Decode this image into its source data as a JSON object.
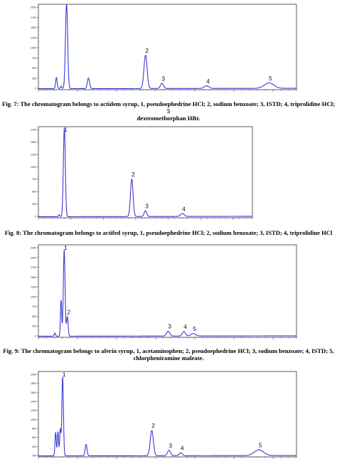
{
  "figures": [
    {
      "caption_lines": [
        "Fig. 7: The chromatogram belongs to actidem syrup, 1, pseudoephedrine HCl; 2, sodium benzoate; 3, ISTD; 4, triprolidine HCl; 5",
        "dextromethorphan HBr."
      ]
    },
    {
      "caption_lines": [
        "Fig. 8: The chromatogram belongs to actifed syrup, 1, pseudoephedrine HCl; 2, sodium benzoate; 3, ISTD; 4, triprolidine HCl"
      ]
    },
    {
      "caption_lines": [
        "Fig. 9: The chromatogram belongs to aferin syrup, 1, acetaminophen; 2, pseudoephedrine HCl; 3, sodium benzoate; 4, ISTD; 5,",
        "chlorpheniramine maleate."
      ]
    },
    {
      "caption_lines": []
    }
  ],
  "colors": {
    "trace": "#3a3ad6",
    "frame": "#333333"
  },
  "chart_data": [
    {
      "type": "line",
      "y_tick_labels": [
        "2000",
        "1750",
        "1500",
        "1250",
        "1000",
        "750",
        "500",
        "250",
        "0"
      ],
      "ylim": [
        0,
        2000
      ],
      "xlim": [
        0,
        33
      ],
      "peak_labels": [
        "2",
        "3",
        "4",
        "5"
      ],
      "peaks": [
        {
          "x": 2.3,
          "h": 260,
          "w": 0.1
        },
        {
          "x": 2.9,
          "h": 60,
          "w": 0.08
        },
        {
          "x": 3.6,
          "h": 2000,
          "w": 0.14,
          "label": ""
        },
        {
          "x": 6.4,
          "h": 250,
          "w": 0.14
        },
        {
          "x": 13.7,
          "h": 780,
          "w": 0.2,
          "label": "2"
        },
        {
          "x": 15.8,
          "h": 120,
          "w": 0.2,
          "label": "3"
        },
        {
          "x": 21.5,
          "h": 60,
          "w": 0.3,
          "label": "4"
        },
        {
          "x": 29.5,
          "h": 130,
          "w": 0.6,
          "label": "5"
        }
      ]
    },
    {
      "type": "line",
      "y_tick_labels": [
        "1750",
        "1500",
        "1250",
        "1000",
        "750",
        "500",
        "250",
        "0"
      ],
      "ylim": [
        0,
        1900
      ],
      "xlim": [
        0,
        33
      ],
      "peak_labels": [
        "1",
        "2",
        "3",
        "4"
      ],
      "peaks": [
        {
          "x": 3.2,
          "h": 40,
          "w": 0.1
        },
        {
          "x": 4.0,
          "h": 1850,
          "w": 0.15,
          "label": "1"
        },
        {
          "x": 14.4,
          "h": 780,
          "w": 0.2,
          "label": "2"
        },
        {
          "x": 16.5,
          "h": 120,
          "w": 0.2,
          "label": "3"
        },
        {
          "x": 22.2,
          "h": 60,
          "w": 0.3,
          "label": "4"
        }
      ]
    },
    {
      "type": "line",
      "y_tick_labels": [
        "2250",
        "2000",
        "1750",
        "1500",
        "1250",
        "1000",
        "750",
        "500",
        "250",
        "0"
      ],
      "ylim": [
        0,
        2300
      ],
      "xlim": [
        0,
        33
      ],
      "peak_labels": [
        "1",
        "2",
        "3",
        "4",
        "5"
      ],
      "peaks": [
        {
          "x": 2.1,
          "h": 80,
          "w": 0.08
        },
        {
          "x": 2.9,
          "h": 900,
          "w": 0.08
        },
        {
          "x": 3.3,
          "h": 2150,
          "w": 0.11,
          "label": "1"
        },
        {
          "x": 3.7,
          "h": 480,
          "w": 0.1,
          "label": "2"
        },
        {
          "x": 16.6,
          "h": 120,
          "w": 0.2,
          "label": "3"
        },
        {
          "x": 18.6,
          "h": 110,
          "w": 0.2,
          "label": "4"
        },
        {
          "x": 19.8,
          "h": 60,
          "w": 0.3,
          "label": "5"
        }
      ]
    },
    {
      "type": "line",
      "y_tick_labels": [
        "2000",
        "1800",
        "1600",
        "1400",
        "1200",
        "1000",
        "800",
        "600",
        "400",
        "200"
      ],
      "ylim": [
        0,
        2100
      ],
      "xlim": [
        0,
        33
      ],
      "peak_labels": [
        "1",
        "2",
        "3",
        "4",
        "5"
      ],
      "peaks": [
        {
          "x": 2.2,
          "h": 580,
          "w": 0.08
        },
        {
          "x": 2.5,
          "h": 600,
          "w": 0.08
        },
        {
          "x": 2.8,
          "h": 650,
          "w": 0.08
        },
        {
          "x": 3.1,
          "h": 1950,
          "w": 0.1,
          "label": "1"
        },
        {
          "x": 6.1,
          "h": 280,
          "w": 0.12
        },
        {
          "x": 14.5,
          "h": 620,
          "w": 0.2,
          "label": "2"
        },
        {
          "x": 16.7,
          "h": 130,
          "w": 0.2,
          "label": "3"
        },
        {
          "x": 18.2,
          "h": 70,
          "w": 0.2,
          "label": "4"
        },
        {
          "x": 28.2,
          "h": 140,
          "w": 0.6,
          "label": "5"
        }
      ]
    }
  ]
}
